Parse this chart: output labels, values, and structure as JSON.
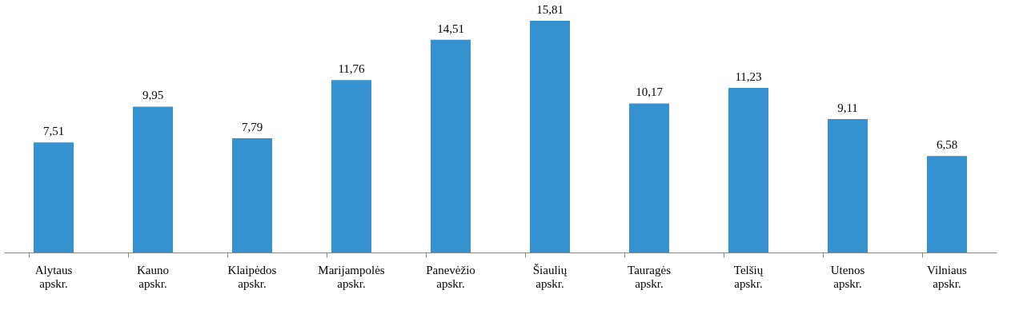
{
  "chart_data": {
    "type": "bar",
    "categories": [
      "Alytaus apskr.",
      "Kauno apskr.",
      "Klaipėdos apskr.",
      "Marijampolės apskr.",
      "Panevėžio apskr.",
      "Šiaulių apskr.",
      "Tauragės apskr.",
      "Telšių apskr.",
      "Utenos apskr.",
      "Vilniaus apskr."
    ],
    "values": [
      7.51,
      9.95,
      7.79,
      11.76,
      14.51,
      15.81,
      10.17,
      11.23,
      9.11,
      6.58
    ],
    "value_labels": [
      "7,51",
      "9,95",
      "7,79",
      "11,76",
      "14,51",
      "15,81",
      "10,17",
      "11,23",
      "9,11",
      "6,58"
    ],
    "color": "#3591cf",
    "grid": false,
    "tick_labels": "x"
  }
}
